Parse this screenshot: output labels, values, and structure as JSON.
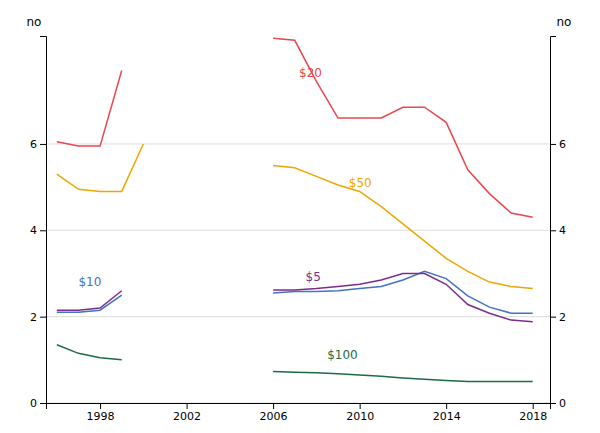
{
  "chart_data": {
    "type": "line",
    "ylabel": "no",
    "y2label": "no",
    "xlim": [
      1995.5,
      2018.8
    ],
    "xticks": [
      1998,
      2002,
      2006,
      2010,
      2014,
      2018
    ],
    "ylim": [
      0,
      8.5
    ],
    "yticks": [
      0,
      2,
      4,
      6
    ],
    "y2lim": [
      0,
      8.5
    ],
    "y2ticks": [
      0,
      2,
      4,
      6
    ],
    "grid": true,
    "series": [
      {
        "color": "#e8474c",
        "x": [
          1996,
          1997,
          1998,
          1999,
          1999.9,
          2006,
          2007,
          2008,
          2009,
          2010,
          2011,
          2012,
          2013,
          2014,
          2015,
          2016,
          2017,
          2018
        ],
        "values": [
          6.05,
          5.95,
          5.95,
          7.7,
          null,
          8.45,
          8.4,
          7.45,
          6.6,
          6.6,
          6.6,
          6.85,
          6.85,
          6.5,
          5.4,
          4.85,
          4.4,
          4.3
        ]
      },
      {
        "color": "#f0a500",
        "x": [
          1996,
          1997,
          1998,
          1999,
          2000,
          2000.9,
          2006,
          2007,
          2008,
          2009,
          2010,
          2011,
          2012,
          2013,
          2014,
          2015,
          2016,
          2017,
          2018
        ],
        "values": [
          5.3,
          4.95,
          4.9,
          4.9,
          6.0,
          null,
          5.5,
          5.45,
          5.25,
          5.05,
          4.9,
          4.55,
          4.15,
          3.75,
          3.35,
          3.05,
          2.8,
          2.7,
          2.65
        ]
      },
      {
        "color": "#4472c4",
        "x": [
          1996,
          1997,
          1998,
          1999,
          1999.9,
          2006,
          2007,
          2008,
          2009,
          2010,
          2011,
          2012,
          2013,
          2014,
          2015,
          2016,
          2017,
          2018
        ],
        "values": [
          2.1,
          2.1,
          2.15,
          2.5,
          null,
          2.55,
          2.58,
          2.58,
          2.6,
          2.65,
          2.7,
          2.85,
          3.05,
          2.88,
          2.48,
          2.22,
          2.08,
          2.08
        ]
      },
      {
        "color": "#7b2d8b",
        "x": [
          1996,
          1997,
          1998,
          1999,
          1999.9,
          2006,
          2007,
          2008,
          2009,
          2010,
          2011,
          2012,
          2013,
          2014,
          2015,
          2016,
          2017,
          2018
        ],
        "values": [
          2.15,
          2.15,
          2.2,
          2.6,
          null,
          2.62,
          2.62,
          2.65,
          2.7,
          2.75,
          2.85,
          3.0,
          3.0,
          2.75,
          2.28,
          2.08,
          1.92,
          1.88
        ]
      },
      {
        "color": "#1d6b44",
        "x": [
          1996,
          1997,
          1998,
          1999,
          1999.9,
          2006,
          2007,
          2008,
          2009,
          2010,
          2011,
          2012,
          2013,
          2014,
          2015,
          2016,
          2017,
          2018
        ],
        "values": [
          1.35,
          1.15,
          1.05,
          1.0,
          null,
          0.73,
          0.71,
          0.7,
          0.68,
          0.65,
          0.62,
          0.58,
          0.55,
          0.52,
          0.5,
          0.5,
          0.5,
          0.5
        ]
      }
    ],
    "annotations": [
      {
        "text": "$20",
        "x": 2007.2,
        "y": 7.55,
        "color": "#e8474c"
      },
      {
        "text": "$50",
        "x": 2009.5,
        "y": 5.0,
        "color": "#f0a500"
      },
      {
        "text": "$10",
        "x": 1997.0,
        "y": 2.72,
        "color": "#4472c4"
      },
      {
        "text": "$5",
        "x": 2007.5,
        "y": 2.82,
        "color": "#7b2d8b"
      },
      {
        "text": "$100",
        "x": 2008.5,
        "y": 1.02,
        "color": "#1d6b44"
      }
    ]
  }
}
